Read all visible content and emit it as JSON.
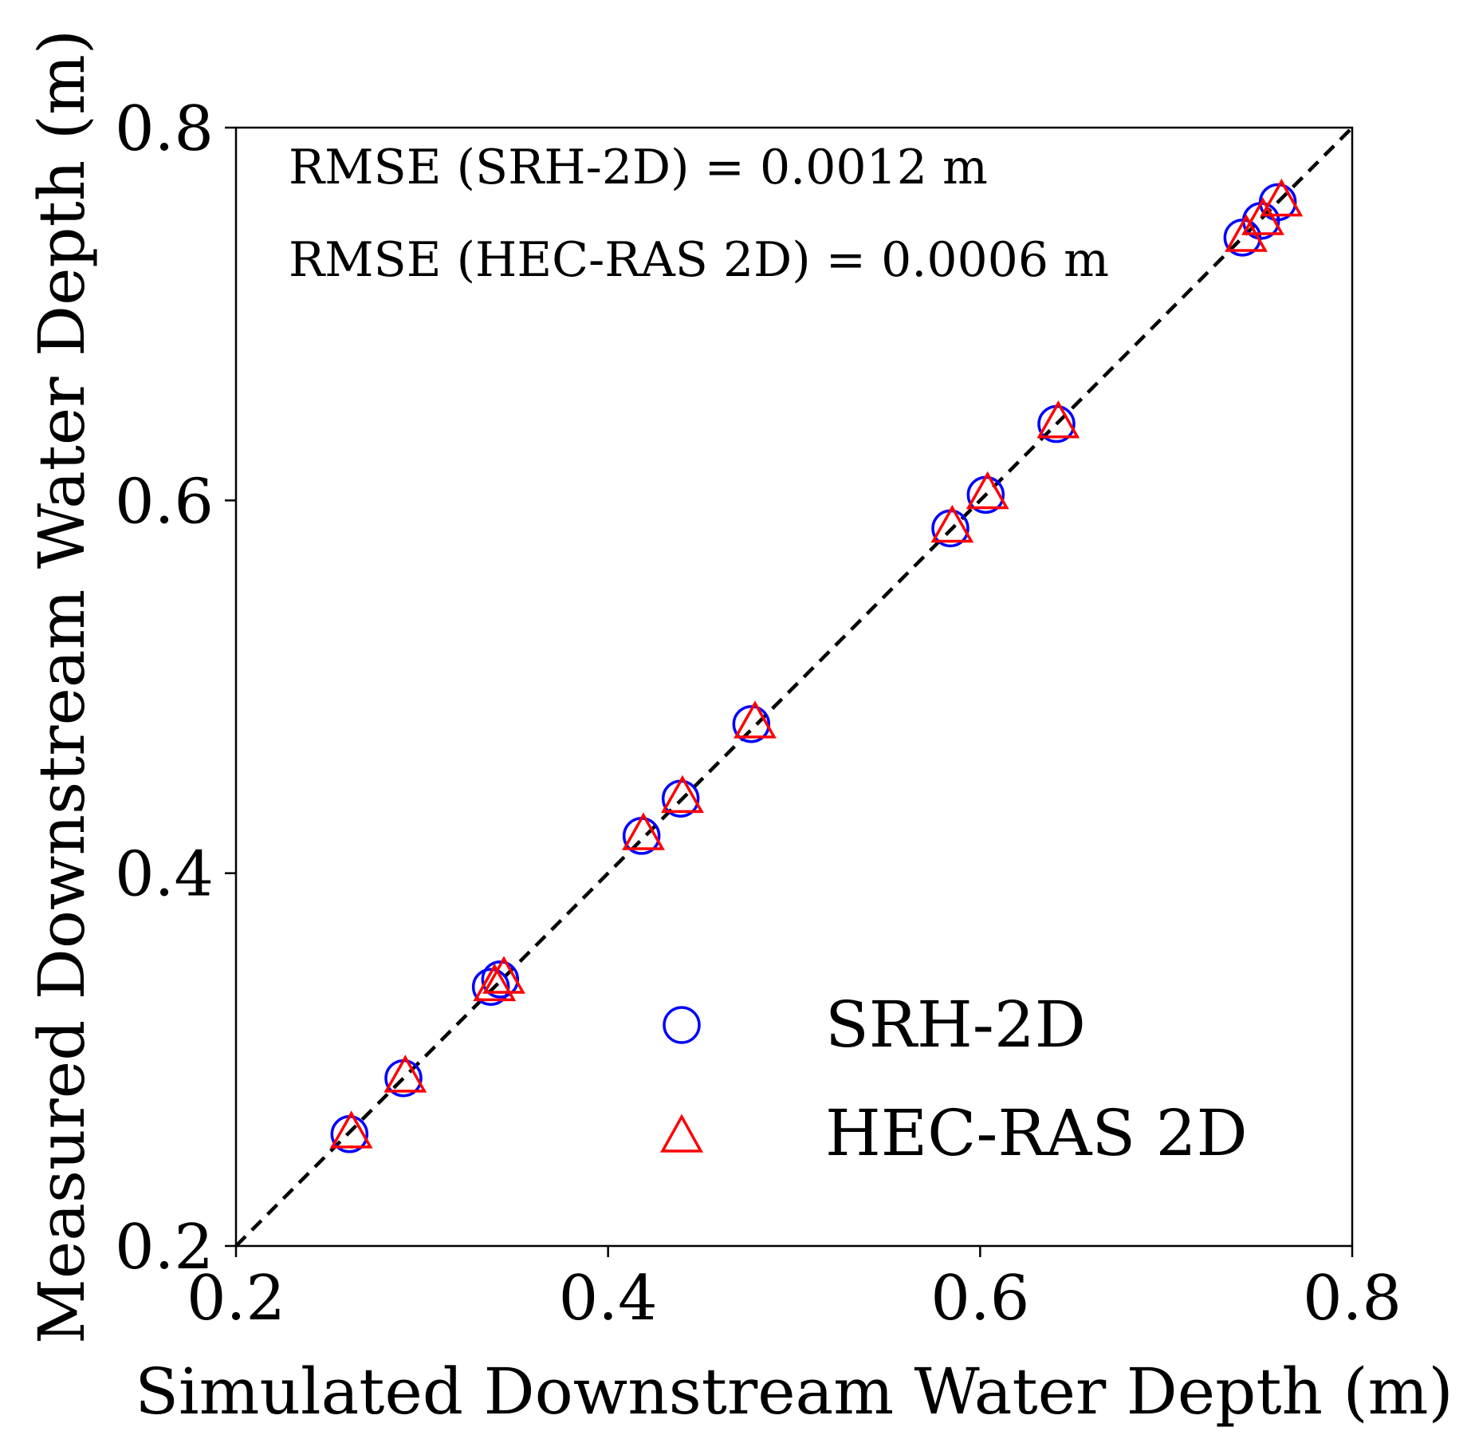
{
  "chart_data": {
    "type": "scatter",
    "xlabel": "Simulated Downstream Water Depth (m)",
    "ylabel": "Measured Downstream Water Depth (m)",
    "xlim": [
      0.2,
      0.8
    ],
    "ylim": [
      0.2,
      0.8
    ],
    "xticks": [
      "0.2",
      "0.4",
      "0.6",
      "0.8"
    ],
    "yticks": [
      "0.2",
      "0.4",
      "0.6",
      "0.8"
    ],
    "tick_values": [
      0.2,
      0.4,
      0.6,
      0.8
    ],
    "grid": false,
    "legend_position": "bottom-right",
    "reference_line": {
      "style": "dashed",
      "color": "#000000",
      "from": [
        0.2,
        0.2
      ],
      "to": [
        0.8,
        0.8
      ]
    },
    "annotations": [
      "RMSE (SRH-2D) = 0.0012 m",
      "RMSE (HEC-RAS 2D) = 0.0006 m"
    ],
    "series": [
      {
        "name": "SRH-2D",
        "marker": "circle",
        "color": "#0000ff",
        "points": [
          [
            0.261,
            0.26
          ],
          [
            0.29,
            0.29
          ],
          [
            0.337,
            0.339
          ],
          [
            0.342,
            0.343
          ],
          [
            0.418,
            0.42
          ],
          [
            0.439,
            0.44
          ],
          [
            0.477,
            0.48
          ],
          [
            0.584,
            0.585
          ],
          [
            0.603,
            0.603
          ],
          [
            0.641,
            0.641
          ],
          [
            0.741,
            0.741
          ],
          [
            0.751,
            0.75
          ],
          [
            0.76,
            0.76
          ]
        ]
      },
      {
        "name": "HEC-RAS 2D",
        "marker": "triangle",
        "color": "#ff0000",
        "points": [
          [
            0.262,
            0.26
          ],
          [
            0.291,
            0.29
          ],
          [
            0.339,
            0.339
          ],
          [
            0.344,
            0.343
          ],
          [
            0.419,
            0.42
          ],
          [
            0.44,
            0.44
          ],
          [
            0.479,
            0.48
          ],
          [
            0.585,
            0.585
          ],
          [
            0.604,
            0.603
          ],
          [
            0.642,
            0.641
          ],
          [
            0.743,
            0.741
          ],
          [
            0.752,
            0.75
          ],
          [
            0.762,
            0.76
          ]
        ]
      }
    ]
  }
}
